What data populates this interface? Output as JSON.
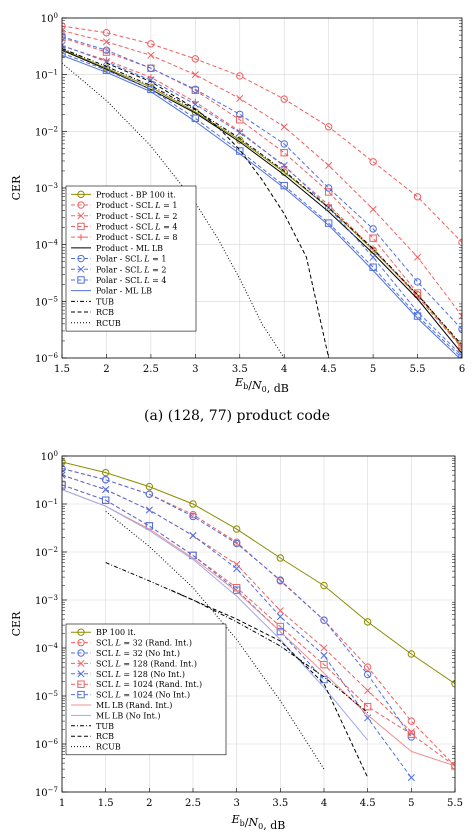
{
  "chart_data": [
    {
      "type": "line",
      "log_y": true,
      "caption": "(a) (128, 77) product code",
      "xlabel": "E_b/N_0, dB",
      "ylabel": "CER",
      "xlim": [
        1.5,
        6
      ],
      "ylim": [
        1e-06,
        1
      ],
      "xticks": [
        "1.5",
        "2",
        "2.5",
        "3",
        "3.5",
        "4",
        "4.5",
        "5",
        "5.5",
        "6"
      ],
      "yticks": [
        "10^0",
        "10^-1",
        "10^-2",
        "10^-3",
        "10^-4",
        "10^-5",
        "10^-6"
      ],
      "grid": true,
      "legend_position": "bottom-left",
      "series": [
        {
          "name": "Product - BP 100 it.",
          "color": "#8c8c00",
          "marker": "circle",
          "dash": "solid",
          "x": [
            1.5,
            2,
            2.5,
            3,
            3.5,
            4,
            4.5,
            5,
            5.5,
            6
          ],
          "y": [
            0.28,
            0.13,
            0.06,
            0.022,
            0.007,
            0.0019,
            0.00045,
            8e-05,
            1.3e-05,
            1.6e-06
          ]
        },
        {
          "name": "Product - SCL L = 1",
          "color": "#f06060",
          "marker": "circle",
          "dash": "dashed",
          "x": [
            1.5,
            2,
            2.5,
            3,
            3.5,
            4,
            4.5,
            5,
            5.5,
            6
          ],
          "y": [
            0.72,
            0.55,
            0.35,
            0.19,
            0.095,
            0.037,
            0.012,
            0.0029,
            0.0007,
            0.00011
          ]
        },
        {
          "name": "Product - SCL L = 2",
          "color": "#f06060",
          "marker": "x",
          "dash": "dashed",
          "x": [
            1.5,
            2,
            2.5,
            3,
            3.5,
            4,
            4.5,
            5,
            5.5,
            6
          ],
          "y": [
            0.6,
            0.38,
            0.22,
            0.1,
            0.038,
            0.012,
            0.0025,
            0.00042,
            6e-05,
            5.5e-06
          ]
        },
        {
          "name": "Product - SCL L = 4",
          "color": "#f06060",
          "marker": "square",
          "dash": "dashed",
          "x": [
            1.5,
            2,
            2.5,
            3,
            3.5,
            4,
            4.5,
            5,
            5.5,
            6
          ],
          "y": [
            0.45,
            0.25,
            0.13,
            0.053,
            0.016,
            0.0042,
            0.00085,
            0.00013,
            1.4e-05,
            1.5e-06
          ]
        },
        {
          "name": "Product - SCL L = 8",
          "color": "#f06060",
          "marker": "plus",
          "dash": "dashed",
          "x": [
            1.5,
            2,
            2.5,
            3,
            3.5,
            4,
            4.5,
            5,
            5.5,
            6
          ],
          "y": [
            0.32,
            0.18,
            0.09,
            0.033,
            0.01,
            0.0024,
            0.0005,
            8.5e-05,
            1.2e-05,
            1.5e-06
          ]
        },
        {
          "name": "Product - ML LB",
          "color": "#000000",
          "marker": "none",
          "dash": "solid",
          "x": [
            1.5,
            2,
            2.5,
            3,
            3.5,
            4,
            4.5,
            5,
            5.5,
            6
          ],
          "y": [
            0.27,
            0.125,
            0.055,
            0.021,
            0.0065,
            0.0017,
            0.00038,
            7e-05,
            1.1e-05,
            1.2e-06
          ]
        },
        {
          "name": "Polar - SCL L = 1",
          "color": "#5070e0",
          "marker": "circle",
          "dash": "dashed",
          "x": [
            1.5,
            2,
            2.5,
            3,
            3.5,
            4,
            4.5,
            5,
            5.5,
            6
          ],
          "y": [
            0.47,
            0.27,
            0.13,
            0.055,
            0.02,
            0.006,
            0.001,
            0.00019,
            2.2e-05,
            3.2e-06
          ]
        },
        {
          "name": "Polar - SCL L = 2",
          "color": "#5070e0",
          "marker": "x",
          "dash": "dashed",
          "x": [
            1.5,
            2,
            2.5,
            3,
            3.5,
            4,
            4.5,
            5,
            5.5,
            6
          ],
          "y": [
            0.33,
            0.17,
            0.08,
            0.03,
            0.0095,
            0.0025,
            0.00045,
            6e-05,
            6.5e-06,
            1.1e-06
          ]
        },
        {
          "name": "Polar - SCL L = 4",
          "color": "#5070e0",
          "marker": "square",
          "dash": "dashed",
          "x": [
            1.5,
            2,
            2.5,
            3,
            3.5,
            4,
            4.5,
            5,
            5.5,
            6
          ],
          "y": [
            0.24,
            0.12,
            0.055,
            0.017,
            0.0045,
            0.0011,
            0.00024,
            4e-05,
            5.5e-06,
            1e-06
          ]
        },
        {
          "name": "Polar - ML LB",
          "color": "#5070e0",
          "marker": "none",
          "dash": "solid",
          "x": [
            1.5,
            2,
            2.5,
            3,
            3.5,
            4,
            4.5,
            5,
            5.5,
            6
          ],
          "y": [
            0.22,
            0.11,
            0.05,
            0.015,
            0.004,
            0.001,
            0.00022,
            3.5e-05,
            5e-06,
            9e-07
          ]
        },
        {
          "name": "TUB",
          "color": "#000000",
          "marker": "none",
          "dash": "dashdot",
          "x": [
            1.5,
            2,
            2.5,
            3,
            3.5,
            4,
            4.5,
            5,
            5.5,
            6
          ],
          "y": [
            0.29,
            0.14,
            0.064,
            0.024,
            0.0075,
            0.002,
            0.00045,
            8.5e-05,
            1.3e-05,
            1.7e-06
          ]
        },
        {
          "name": "RCB",
          "color": "#000000",
          "marker": "none",
          "dash": "dashed",
          "x": [
            2,
            2.5,
            3,
            3.25,
            3.5,
            3.75,
            4,
            4.25,
            4.5
          ],
          "y": [
            0.16,
            0.075,
            0.025,
            0.012,
            0.0047,
            0.0014,
            0.00035,
            6e-05,
            1e-06
          ]
        },
        {
          "name": "RCUB",
          "color": "#000000",
          "marker": "none",
          "dash": "dotted",
          "x": [
            1.5,
            2,
            2.5,
            3,
            3.25,
            3.5,
            3.75,
            4
          ],
          "y": [
            0.16,
            0.035,
            0.0055,
            0.00055,
            0.00013,
            2.5e-05,
            4e-06,
            1e-06
          ]
        }
      ]
    },
    {
      "type": "line",
      "log_y": true,
      "xlabel": "E_b/N_0, dB",
      "ylabel": "CER",
      "xlim": [
        1,
        5.5
      ],
      "ylim": [
        1e-07,
        1
      ],
      "xticks": [
        "1",
        "1.5",
        "2",
        "2.5",
        "3",
        "3.5",
        "4",
        "4.5",
        "5",
        "5.5"
      ],
      "yticks": [
        "10^0",
        "10^-1",
        "10^-2",
        "10^-3",
        "10^-4",
        "10^-5",
        "10^-6",
        "10^-7"
      ],
      "grid": true,
      "legend_position": "bottom-left",
      "series": [
        {
          "name": "BP 100 it.",
          "color": "#8c8c00",
          "marker": "circle",
          "dash": "solid",
          "x": [
            1,
            1.5,
            2,
            2.5,
            3,
            3.5,
            4,
            4.5,
            5,
            5.5
          ],
          "y": [
            0.75,
            0.45,
            0.23,
            0.1,
            0.03,
            0.0075,
            0.002,
            0.00035,
            7.5e-05,
            1.8e-05
          ]
        },
        {
          "name": "SCL L = 32 (Rand. Int.)",
          "color": "#f06060",
          "marker": "circle",
          "dash": "dashed",
          "x": [
            1,
            1.5,
            2,
            2.5,
            3,
            3.5,
            4,
            4.5,
            5,
            5.5
          ],
          "y": [
            0.55,
            0.32,
            0.16,
            0.06,
            0.016,
            0.0025,
            0.00038,
            4e-05,
            3e-06,
            3.5e-07
          ]
        },
        {
          "name": "SCL L = 32 (No Int.)",
          "color": "#5070e0",
          "marker": "circle",
          "dash": "dashed",
          "x": [
            1,
            1.5,
            2,
            2.5,
            3,
            3.5,
            4,
            4.5,
            5
          ],
          "y": [
            0.55,
            0.32,
            0.16,
            0.055,
            0.015,
            0.0026,
            0.00038,
            2.8e-05,
            1.4e-06
          ]
        },
        {
          "name": "SCL L = 128 (Rand. Int.)",
          "color": "#f06060",
          "marker": "x",
          "dash": "dashed",
          "x": [
            1,
            1.5,
            2,
            2.5,
            3,
            3.5,
            4,
            4.5,
            5
          ],
          "y": [
            0.4,
            0.2,
            0.075,
            0.022,
            0.0055,
            0.0006,
            0.0001,
            1.3e-05,
            1.8e-06
          ]
        },
        {
          "name": "SCL L = 128 (No Int.)",
          "color": "#5070e0",
          "marker": "x",
          "dash": "dashed",
          "x": [
            1,
            1.5,
            2,
            2.5,
            3,
            3.5,
            4,
            4.5,
            5
          ],
          "y": [
            0.4,
            0.2,
            0.075,
            0.022,
            0.0045,
            0.00045,
            7e-05,
            3.5e-06,
            2e-07
          ]
        },
        {
          "name": "SCL L = 1024 (Rand. Int.)",
          "color": "#f06060",
          "marker": "square",
          "dash": "dashed",
          "x": [
            1,
            1.5,
            2,
            2.5,
            3,
            3.5,
            4,
            4.5,
            5,
            5.5
          ],
          "y": [
            0.25,
            0.12,
            0.035,
            0.0085,
            0.0018,
            0.00028,
            4.5e-05,
            6e-06,
            1.6e-06,
            3.5e-07
          ]
        },
        {
          "name": "SCL L = 1024 (No Int.)",
          "color": "#5070e0",
          "marker": "square",
          "dash": "dashed",
          "x": [
            1,
            1.5,
            2,
            2.5,
            3,
            3.5,
            4
          ],
          "y": [
            0.25,
            0.12,
            0.035,
            0.0085,
            0.0016,
            0.00022,
            2.2e-05
          ]
        },
        {
          "name": "ML LB (Rand. Int.)",
          "color": "#f09090",
          "marker": "none",
          "dash": "solid",
          "x": [
            1,
            1.5,
            2,
            2.5,
            3,
            3.5,
            4,
            4.5,
            5,
            5.5
          ],
          "y": [
            0.2,
            0.09,
            0.03,
            0.0075,
            0.0015,
            0.00022,
            3e-05,
            4e-06,
            7e-07,
            3.5e-07
          ]
        },
        {
          "name": "ML LB (No Int.)",
          "color": "#a0a8f0",
          "marker": "none",
          "dash": "solid",
          "x": [
            1,
            1.5,
            2,
            2.5,
            3,
            3.5,
            4,
            4.5
          ],
          "y": [
            0.2,
            0.09,
            0.028,
            0.007,
            0.0012,
            0.00015,
            1.5e-05,
            1.2e-06
          ]
        },
        {
          "name": "TUB",
          "color": "#000000",
          "marker": "none",
          "dash": "dashdot",
          "x": [
            1.5,
            2,
            2.5,
            3,
            3.5,
            4,
            4.5
          ],
          "y": [
            0.006,
            0.0025,
            0.001,
            0.00035,
            0.00011,
            2.5e-05,
            4.5e-06
          ]
        },
        {
          "name": "RCB",
          "color": "#000000",
          "marker": "none",
          "dash": "dashed",
          "x": [
            2.25,
            2.5,
            3,
            3.5,
            4,
            4.5
          ],
          "y": [
            0.0016,
            0.001,
            0.0004,
            0.00014,
            1.8e-05,
            2e-07
          ]
        },
        {
          "name": "RCUB",
          "color": "#000000",
          "marker": "none",
          "dash": "dotted",
          "x": [
            1.5,
            2,
            2.5,
            3,
            3.5,
            4
          ],
          "y": [
            0.07,
            0.013,
            0.0018,
            0.00015,
            8e-06,
            3e-07
          ]
        }
      ]
    }
  ]
}
